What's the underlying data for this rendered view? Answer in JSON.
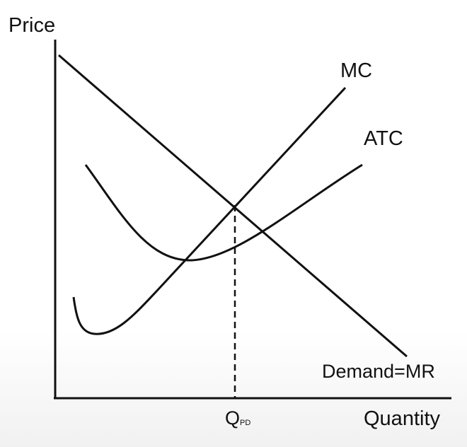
{
  "axes": {
    "y_label": "Price",
    "x_label": "Quantity"
  },
  "curves": {
    "mc": {
      "label": "MC"
    },
    "atc": {
      "label": "ATC"
    },
    "demand": {
      "label": "Demand=MR"
    }
  },
  "marker": {
    "q_main": "Q",
    "q_sub": "PD"
  },
  "colors": {
    "line": "#111111"
  }
}
